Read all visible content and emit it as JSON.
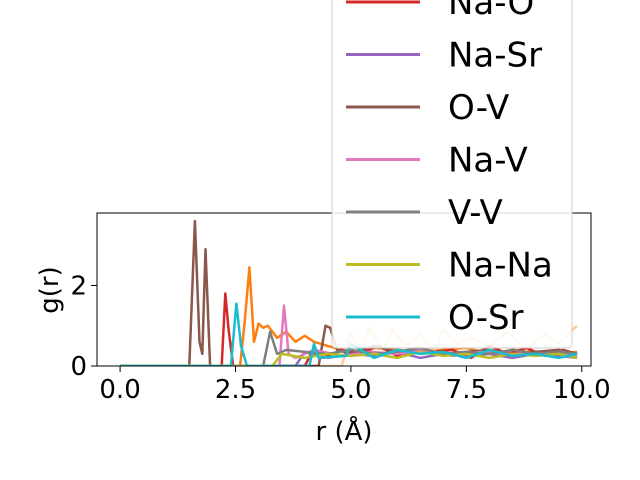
{
  "chart_data": {
    "type": "line",
    "xlabel": "r (Å)",
    "ylabel": "g(r)",
    "xlim": [
      -0.5,
      10.2
    ],
    "ylim": [
      0,
      3.8
    ],
    "xticks": [
      "0.0",
      "2.5",
      "5.0",
      "7.5",
      "10.0"
    ],
    "xtick_values": [
      0,
      2.5,
      5,
      7.5,
      10
    ],
    "yticks": [
      "0",
      "2"
    ],
    "ytick_values": [
      0,
      2
    ],
    "grid": false,
    "legend_placement": "upper-right, partially above the plot",
    "series": [
      {
        "name": "",
        "color": "#ff7f0e",
        "x": [
          0,
          2.6,
          2.7,
          2.8,
          2.9,
          3.0,
          3.1,
          3.2,
          3.4,
          3.6,
          3.8,
          4.0,
          4.2,
          4.5,
          4.8,
          5.0,
          5.5,
          6.0,
          6.5,
          7.0,
          7.5,
          8.0,
          8.5,
          9.0,
          9.5,
          9.9
        ],
        "y": [
          0,
          0,
          1.1,
          2.45,
          0.6,
          1.05,
          0.95,
          1.0,
          0.7,
          0.85,
          0.6,
          0.75,
          0.6,
          0.5,
          0.4,
          0.35,
          0.45,
          0.4,
          0.35,
          0.4,
          0.45,
          0.3,
          0.4,
          0.35,
          0.3,
          0.35
        ]
      },
      {
        "name": "",
        "color": "#ffcc99",
        "x": [
          0,
          4.8,
          5.0,
          5.2,
          5.4,
          5.7,
          5.9,
          6.2,
          6.5,
          6.8,
          7.0,
          7.3,
          7.6,
          8.0,
          8.4,
          8.8,
          9.2,
          9.5,
          9.8,
          9.9
        ],
        "y": [
          0,
          0,
          0.85,
          0.3,
          0.95,
          0.4,
          0.9,
          0.5,
          0.8,
          0.35,
          0.9,
          0.55,
          0.7,
          0.5,
          0.85,
          0.4,
          0.8,
          0.55,
          0.9,
          1.0
        ]
      },
      {
        "name": "Na-O",
        "color": "#d62728",
        "x": [
          0,
          2.2,
          2.28,
          2.35,
          2.45,
          4.0,
          4.2,
          4.4,
          4.8,
          5.2,
          5.6,
          6.0,
          6.4,
          6.8,
          7.2,
          7.6,
          8.0,
          8.4,
          8.8,
          9.2,
          9.6,
          9.9
        ],
        "y": [
          0,
          0,
          1.8,
          0.9,
          0,
          0,
          0.45,
          0.2,
          0.4,
          0.3,
          0.5,
          0.25,
          0.45,
          0.35,
          0.4,
          0.2,
          0.5,
          0.3,
          0.45,
          0.25,
          0.4,
          0.3
        ]
      },
      {
        "name": "Na-Sr",
        "color": "#9467bd",
        "x": [
          0,
          3.8,
          4.0,
          4.5,
          5.0,
          5.5,
          6.0,
          6.5,
          7.0,
          7.5,
          8.0,
          8.5,
          9.0,
          9.5,
          9.9
        ],
        "y": [
          0,
          0,
          0.35,
          0.2,
          0.3,
          0.25,
          0.35,
          0.2,
          0.3,
          0.25,
          0.3,
          0.2,
          0.3,
          0.25,
          0.2
        ]
      },
      {
        "name": "O-V",
        "color": "#8c564b",
        "x": [
          0,
          1.5,
          1.62,
          1.72,
          1.78,
          1.85,
          1.95,
          4.3,
          4.45,
          4.55,
          4.7,
          5.0,
          5.5,
          6.0,
          6.5,
          7.0,
          7.5,
          8.0,
          8.5,
          9.0,
          9.5,
          9.9
        ],
        "y": [
          0,
          0,
          3.6,
          0.6,
          0.3,
          2.9,
          0,
          0,
          1.0,
          0.95,
          0.4,
          0.3,
          0.5,
          0.35,
          0.4,
          0.3,
          0.35,
          0.4,
          0.3,
          0.35,
          0.4,
          0.3
        ]
      },
      {
        "name": "Na-V",
        "color": "#e377c2",
        "x": [
          0,
          3.45,
          3.55,
          3.65,
          3.8,
          4.2,
          4.8,
          5.4,
          6.0,
          6.6,
          7.2,
          7.8,
          8.4,
          9.0,
          9.6,
          9.9
        ],
        "y": [
          0,
          0,
          1.5,
          0.3,
          0.2,
          0.4,
          0.25,
          0.35,
          0.3,
          0.4,
          0.25,
          0.35,
          0.3,
          0.3,
          0.35,
          0.25
        ]
      },
      {
        "name": "V-V",
        "color": "#7f7f7f",
        "x": [
          0,
          3.1,
          3.25,
          3.4,
          3.6,
          4.0,
          4.5,
          5.0,
          5.5,
          6.0,
          6.5,
          7.0,
          7.5,
          8.0,
          8.5,
          9.0,
          9.5,
          9.9
        ],
        "y": [
          0,
          0,
          0.85,
          0.3,
          0.4,
          0.35,
          0.3,
          0.4,
          0.3,
          0.35,
          0.45,
          0.3,
          0.35,
          0.3,
          0.4,
          0.3,
          0.35,
          0.3
        ]
      },
      {
        "name": "Na-Na",
        "color": "#bcbd22",
        "x": [
          0,
          3.3,
          3.5,
          4.0,
          4.5,
          5.0,
          5.5,
          6.0,
          6.5,
          7.0,
          7.5,
          8.0,
          8.5,
          9.0,
          9.5,
          9.9
        ],
        "y": [
          0,
          0,
          0.3,
          0.2,
          0.3,
          0.25,
          0.3,
          0.2,
          0.35,
          0.25,
          0.3,
          0.2,
          0.3,
          0.25,
          0.3,
          0.2
        ]
      },
      {
        "name": "O-Sr",
        "color": "#17becf",
        "x": [
          0,
          2.4,
          2.52,
          2.62,
          2.75,
          4.1,
          4.2,
          4.3,
          4.9,
          5.0,
          5.5,
          6.0,
          6.5,
          7.0,
          7.5,
          8.0,
          8.5,
          9.0,
          9.5,
          9.9
        ],
        "y": [
          0,
          0,
          1.55,
          0.5,
          0,
          0,
          0.55,
          0.2,
          0.25,
          0.55,
          0.2,
          0.4,
          0.3,
          0.35,
          0.2,
          0.4,
          0.25,
          0.3,
          0.2,
          0.3
        ]
      }
    ]
  }
}
